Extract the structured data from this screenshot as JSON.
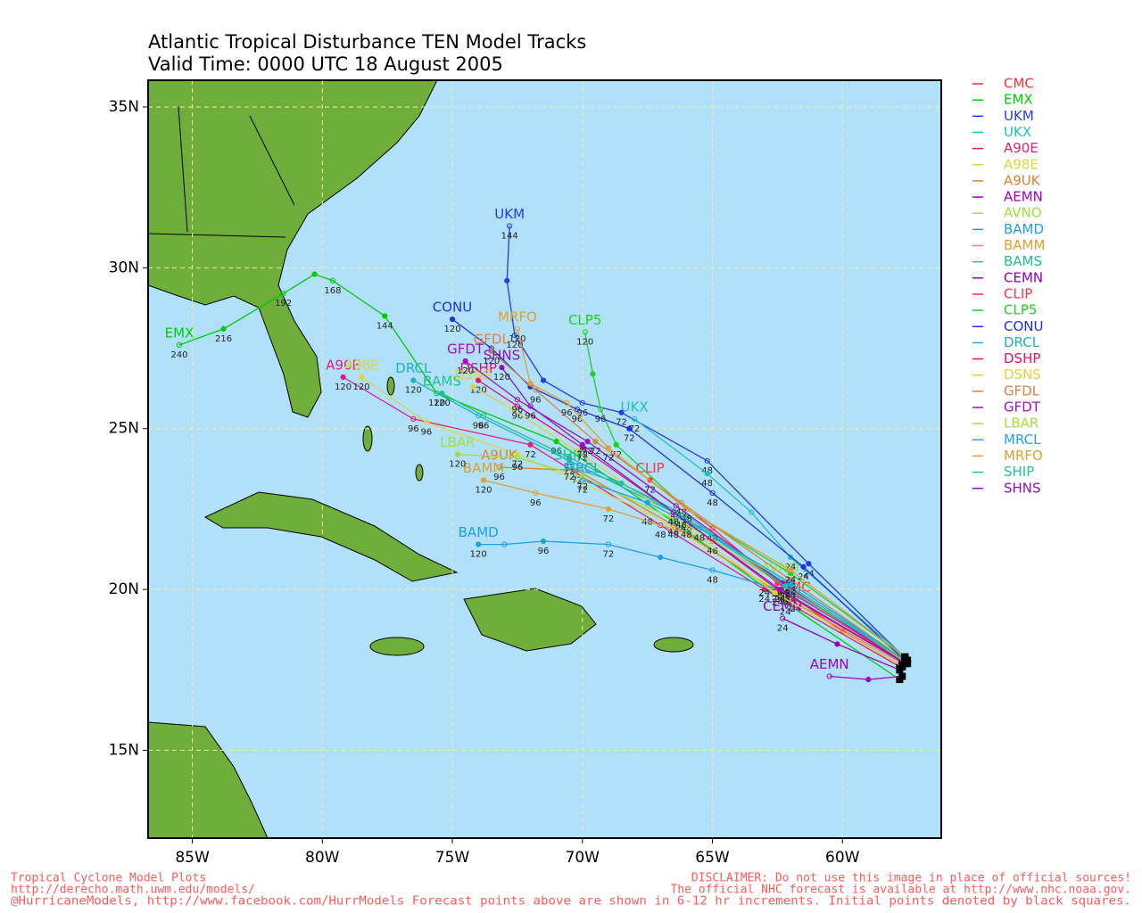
{
  "chart_data": {
    "type": "track",
    "title": "Atlantic Tropical Disturbance TEN Model Tracks",
    "subtitle": "Valid Time: 0000 UTC 18 August 2005",
    "xlim": [
      -86.7,
      -56.2
    ],
    "ylim": [
      12.27,
      35.83
    ],
    "grid": true,
    "xticks": [
      {
        "value": -85,
        "label": "85W"
      },
      {
        "value": -80,
        "label": "80W"
      },
      {
        "value": -75,
        "label": "75W"
      },
      {
        "value": -70,
        "label": "70W"
      },
      {
        "value": -65,
        "label": "65W"
      },
      {
        "value": -60,
        "label": "60W"
      }
    ],
    "yticks": [
      {
        "value": 15,
        "label": "15N"
      },
      {
        "value": 20,
        "label": "20N"
      },
      {
        "value": 25,
        "label": "25N"
      },
      {
        "value": 30,
        "label": "30N"
      },
      {
        "value": 35,
        "label": "35N"
      }
    ],
    "series": [
      {
        "name": "CMC",
        "color": "#ff3030",
        "x": [
          -57.7,
          -60,
          -61.8
        ],
        "y": [
          17.6,
          18.7,
          19.7
        ],
        "hours": [
          null,
          null,
          24
        ]
      },
      {
        "name": "EMX",
        "color": "#00cc00",
        "x": [
          -57.8,
          -62.2,
          -66.5,
          -71,
          -75.6,
          -77.6,
          -79.6,
          -80.3,
          -81.5,
          -83.8,
          -85.5
        ],
        "y": [
          17.2,
          19.6,
          22.1,
          24.6,
          26.1,
          28.5,
          29.6,
          29.8,
          29.2,
          28.1,
          27.6
        ],
        "hours": [
          null,
          24,
          48,
          96,
          120,
          144,
          168,
          null,
          192,
          216,
          240
        ]
      },
      {
        "name": "UKM",
        "color": "#2040e0",
        "x": [
          -57.5,
          -61.3,
          -65.2,
          -68.5,
          -70,
          -71.5,
          -72.6,
          -72.9,
          -72.8
        ],
        "y": [
          17.8,
          20.8,
          24,
          25.5,
          25.8,
          26.5,
          27.9,
          29.6,
          31.3
        ],
        "hours": [
          null,
          24,
          48,
          72,
          96,
          null,
          120,
          null,
          144
        ]
      },
      {
        "name": "UKX",
        "color": "#20c0c0",
        "x": [
          -57.6,
          -62,
          -63.5,
          -65.2,
          -68
        ],
        "y": [
          17.9,
          21,
          22.4,
          23.6,
          25.3
        ],
        "hours": [
          null,
          24,
          null,
          48,
          72
        ]
      },
      {
        "name": "A90E",
        "color": "#e0207f",
        "x": [
          -57.8,
          -63,
          -67,
          -72,
          -76.5,
          -79.2
        ],
        "y": [
          17.6,
          20,
          22,
          24.5,
          25.3,
          26.6
        ],
        "hours": [
          null,
          24,
          48,
          72,
          96,
          120
        ]
      },
      {
        "name": "A98E",
        "color": "#d8d840",
        "x": [
          -57.7,
          -63,
          -67.5,
          -72.5,
          -76,
          -78.5
        ],
        "y": [
          17.8,
          20.2,
          22.4,
          24.2,
          25.2,
          26.6
        ],
        "hours": [
          null,
          24,
          48,
          72,
          96,
          120
        ]
      },
      {
        "name": "A9UK",
        "color": "#e08030",
        "x": [
          -57.7,
          -62.5,
          -66.5,
          -70.2,
          -73.2
        ],
        "y": [
          17.7,
          19.9,
          22,
          23.7,
          23.8
        ],
        "hours": [
          null,
          24,
          48,
          72,
          96
        ]
      },
      {
        "name": "AEMN",
        "color": "#a000c0",
        "x": [
          -57.7,
          -59,
          -60.5
        ],
        "y": [
          17.3,
          17.2,
          17.3
        ],
        "hours": [
          null,
          null,
          null
        ]
      },
      {
        "name": "AVNO",
        "color": "#a0e040",
        "x": [
          -57.6,
          -60.5,
          -62.4
        ],
        "y": [
          17.9,
          19.3,
          20.3
        ],
        "hours": [
          null,
          null,
          24
        ]
      },
      {
        "name": "BAMD",
        "color": "#20a0e0",
        "x": [
          -57.5,
          -62,
          -65,
          -67,
          -69,
          -71.5,
          -73,
          -74
        ],
        "y": [
          17.7,
          19.9,
          20.6,
          21,
          21.4,
          21.5,
          21.4,
          21.4
        ],
        "hours": [
          null,
          24,
          48,
          null,
          72,
          96,
          null,
          120
        ]
      },
      {
        "name": "BAMM",
        "color": "#e0a030",
        "x": [
          -57.5,
          -62,
          -65,
          -69,
          -71.8,
          -73.8
        ],
        "y": [
          17.7,
          20,
          21.5,
          22.5,
          23,
          23.4
        ],
        "hours": [
          null,
          24,
          48,
          72,
          96,
          120
        ]
      },
      {
        "name": "BAMS",
        "color": "#20c090",
        "x": [
          -57.6,
          -62.2,
          -66,
          -70.5,
          -73.8,
          -75.4
        ],
        "y": [
          17.8,
          20.1,
          22.3,
          24.1,
          25.4,
          26.1
        ],
        "hours": [
          null,
          24,
          48,
          72,
          96,
          120
        ]
      },
      {
        "name": "CEMN",
        "color": "#9000c0",
        "x": [
          -57.8,
          -60.2,
          -62.3
        ],
        "y": [
          17.5,
          18.3,
          19.1
        ],
        "hours": [
          null,
          null,
          24
        ]
      },
      {
        "name": "CLIP",
        "color": "#ff3050",
        "x": [
          -57.6,
          -62.5,
          -65,
          -67.4
        ],
        "y": [
          17.7,
          20.2,
          21.9,
          23.4
        ],
        "hours": [
          null,
          24,
          48,
          72
        ]
      },
      {
        "name": "CLP5",
        "color": "#20d020",
        "x": [
          -57.6,
          -62,
          -66,
          -68.7,
          -69.3,
          -69.6,
          -69.9
        ],
        "y": [
          17.9,
          20.5,
          22.5,
          24.5,
          25.6,
          26.7,
          28
        ],
        "hours": [
          null,
          24,
          48,
          72,
          96,
          null,
          120
        ]
      },
      {
        "name": "CONU",
        "color": "#2030e0",
        "x": [
          -57.6,
          -61.5,
          -65,
          -68.2,
          -70.2,
          -72,
          -73.5,
          -75
        ],
        "y": [
          17.8,
          20.7,
          23,
          25,
          25.6,
          26.3,
          27.5,
          28.4
        ],
        "hours": [
          null,
          24,
          48,
          72,
          96,
          null,
          null,
          120
        ]
      },
      {
        "name": "DRCL",
        "color": "#20b0c0",
        "x": [
          -57.6,
          -62,
          -66,
          -70.5,
          -74,
          -76.5
        ],
        "y": [
          17.8,
          20.1,
          22.2,
          24,
          25.4,
          26.5
        ],
        "hours": [
          null,
          24,
          48,
          72,
          96,
          120
        ]
      },
      {
        "name": "DSHP",
        "color": "#e01070",
        "x": [
          -57.6,
          -62.5,
          -66.5,
          -70,
          -72.5,
          -74
        ],
        "y": [
          17.7,
          20,
          22.4,
          24.4,
          25.7,
          26.5
        ],
        "hours": [
          null,
          24,
          48,
          72,
          96,
          120
        ]
      },
      {
        "name": "DSNS",
        "color": "#e0d040",
        "x": [
          -57.7,
          -62.6,
          -66.6,
          -70.2,
          -72.7,
          -74.2
        ],
        "y": [
          17.6,
          19.9,
          22.3,
          24.3,
          25.6,
          26.3
        ],
        "hours": [
          null,
          null,
          null,
          null,
          null,
          null
        ]
      },
      {
        "name": "GFDL",
        "color": "#e08040",
        "x": [
          -57.6,
          -62,
          -66.2,
          -69.5,
          -71.8,
          -73.5
        ],
        "y": [
          17.8,
          20.3,
          22.7,
          24.6,
          26.2,
          27.4
        ],
        "hours": [
          null,
          24,
          48,
          72,
          96,
          120
        ]
      },
      {
        "name": "GFDT",
        "color": "#a010c0",
        "x": [
          -57.6,
          -62.3,
          -66.4,
          -69.8,
          -72.5,
          -74.5
        ],
        "y": [
          17.7,
          20.2,
          22.6,
          24.6,
          25.9,
          27.1
        ],
        "hours": [
          null,
          24,
          48,
          72,
          96,
          120
        ]
      },
      {
        "name": "LBAR",
        "color": "#a0e040",
        "x": [
          -57.6,
          -62,
          -66,
          -70,
          -72.5,
          -74.8
        ],
        "y": [
          17.8,
          20.2,
          22,
          23.5,
          24.1,
          24.2
        ],
        "hours": [
          null,
          24,
          48,
          72,
          96,
          120
        ]
      },
      {
        "name": "MRCL",
        "color": "#20a0f0",
        "x": [
          -57.6,
          -62,
          -65.5,
          -67.5,
          -70
        ],
        "y": [
          17.8,
          20.2,
          21.9,
          22.7,
          23.4
        ],
        "hours": [
          null,
          24,
          48,
          null,
          72
        ]
      },
      {
        "name": "MRFO",
        "color": "#e0a030",
        "x": [
          -57.6,
          -62,
          -66,
          -69,
          -70.6,
          -72,
          -72.5
        ],
        "y": [
          17.9,
          20.6,
          22.5,
          24.4,
          25.8,
          26.4,
          28.1
        ],
        "hours": [
          null,
          24,
          48,
          72,
          96,
          null,
          120
        ]
      },
      {
        "name": "SHIP",
        "color": "#20c0a0",
        "x": [
          -57.6,
          -62.2,
          -66.2,
          -68.5,
          -70.5
        ],
        "y": [
          17.8,
          20.1,
          22.3,
          23.3,
          23.8
        ],
        "hours": [
          null,
          24,
          48,
          null,
          72
        ]
      },
      {
        "name": "SHNS",
        "color": "#9010c0",
        "x": [
          -57.6,
          -62.4,
          -66.5,
          -70,
          -72,
          -73.1
        ],
        "y": [
          17.7,
          20,
          22.4,
          24.5,
          25.7,
          26.9
        ],
        "hours": [
          null,
          24,
          48,
          72,
          96,
          120
        ]
      }
    ]
  },
  "footer": {
    "left": [
      "Tropical Cyclone Model Plots",
      "http://derecho.math.uwm.edu/models/"
    ],
    "right": [
      "DISCLAIMER: Do not use this image in place of official sources!",
      "The official NHC forecast is available at http://www.nhc.noaa.gov."
    ],
    "bottom": "@HurricaneModels, http://www.facebook.com/HurrModels  Forecast points above are shown in 6-12 hr increments. Initial points denoted by black squares."
  }
}
